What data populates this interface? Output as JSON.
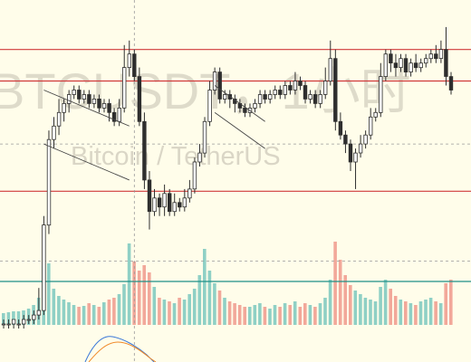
{
  "watermark": {
    "symbol_line": "BTCUSDT，1小时",
    "name_line": "Bitcoin / TetherUS"
  },
  "colors": {
    "background": "#fffdea",
    "up": "#2e2e2e",
    "down": "#2e2e2e",
    "volume_up": "#8fd0c5",
    "volume_down": "#f2a89a",
    "level_line": "#d03a3a",
    "volume_avg_line": "#1f8f86",
    "crosshair": "#9a9a9a",
    "channel": "#444444",
    "osc_a": "#3a78d8",
    "osc_b": "#f08a2a"
  },
  "chart_data": {
    "type": "candlestick",
    "title": "",
    "xlabel": "",
    "ylabel": "",
    "price_range": [
      30,
      100
    ],
    "horizontal_levels": [
      91,
      84,
      59.5
    ],
    "volume_average": 48,
    "candles": [
      [
        30,
        30,
        29,
        31
      ],
      [
        30,
        30,
        29,
        31
      ],
      [
        30,
        31,
        29,
        31
      ],
      [
        30,
        30,
        29,
        31
      ],
      [
        30,
        31,
        29,
        32
      ],
      [
        31,
        31,
        30,
        32
      ],
      [
        31,
        32,
        30,
        33
      ],
      [
        32,
        33,
        31,
        38
      ],
      [
        33,
        52,
        32,
        54
      ],
      [
        52,
        71,
        50,
        73
      ],
      [
        71,
        74,
        69,
        76
      ],
      [
        74,
        77,
        72,
        80
      ],
      [
        77,
        79,
        75,
        80
      ],
      [
        79,
        81,
        77,
        82
      ],
      [
        81,
        82,
        80,
        83
      ],
      [
        82,
        80,
        79,
        83
      ],
      [
        80,
        81,
        79,
        82
      ],
      [
        81,
        79,
        78,
        82
      ],
      [
        79,
        80,
        78,
        81
      ],
      [
        80,
        78,
        77,
        81
      ],
      [
        78,
        79,
        77,
        80
      ],
      [
        79,
        77,
        75,
        80
      ],
      [
        77,
        75,
        74,
        78
      ],
      [
        75,
        78,
        74,
        80
      ],
      [
        78,
        87,
        77,
        92
      ],
      [
        87,
        90,
        85,
        93
      ],
      [
        90,
        85,
        84,
        91
      ],
      [
        85,
        75,
        74,
        87
      ],
      [
        75,
        62,
        60,
        77
      ],
      [
        62,
        55,
        51,
        64
      ],
      [
        55,
        58,
        54,
        60
      ],
      [
        58,
        56,
        54,
        59
      ],
      [
        56,
        59,
        54,
        61
      ],
      [
        59,
        55,
        54,
        60
      ],
      [
        55,
        57,
        54,
        59
      ],
      [
        57,
        56,
        55,
        58
      ],
      [
        56,
        58,
        55,
        60
      ],
      [
        58,
        60,
        57,
        62
      ],
      [
        60,
        66,
        59,
        67
      ],
      [
        66,
        68,
        65,
        70
      ],
      [
        68,
        75,
        67,
        76
      ],
      [
        75,
        82,
        74,
        84
      ],
      [
        82,
        86,
        81,
        87
      ],
      [
        86,
        80,
        79,
        87
      ],
      [
        80,
        81,
        79,
        82
      ],
      [
        81,
        80,
        78,
        82
      ],
      [
        80,
        79,
        77,
        81
      ],
      [
        79,
        78,
        77,
        80
      ],
      [
        78,
        77,
        76,
        79
      ],
      [
        77,
        78,
        76,
        79
      ],
      [
        78,
        79,
        77,
        80
      ],
      [
        79,
        81,
        78,
        82
      ],
      [
        81,
        80,
        79,
        82
      ],
      [
        80,
        81,
        79,
        82
      ],
      [
        81,
        82,
        80,
        83
      ],
      [
        82,
        81,
        80,
        83
      ],
      [
        81,
        83,
        80,
        84
      ],
      [
        83,
        82,
        81,
        84
      ],
      [
        82,
        84,
        81,
        86
      ],
      [
        84,
        83,
        82,
        85
      ],
      [
        83,
        80,
        79,
        84
      ],
      [
        80,
        81,
        79,
        82
      ],
      [
        81,
        79,
        78,
        82
      ],
      [
        79,
        81,
        78,
        82
      ],
      [
        81,
        84,
        80,
        87
      ],
      [
        84,
        89,
        83,
        93
      ],
      [
        89,
        75,
        73,
        91
      ],
      [
        75,
        72,
        71,
        77
      ],
      [
        72,
        70,
        68,
        73
      ],
      [
        70,
        66,
        64,
        71
      ],
      [
        66,
        68,
        60,
        69
      ],
      [
        68,
        70,
        67,
        72
      ],
      [
        70,
        72,
        69,
        73
      ],
      [
        72,
        76,
        71,
        78
      ],
      [
        76,
        77,
        75,
        78
      ],
      [
        77,
        85,
        76,
        88
      ],
      [
        85,
        90,
        84,
        91
      ],
      [
        90,
        88,
        86,
        91
      ],
      [
        88,
        87,
        85,
        90
      ],
      [
        87,
        89,
        86,
        90
      ],
      [
        89,
        86,
        85,
        90
      ],
      [
        86,
        88,
        85,
        89
      ],
      [
        88,
        87,
        86,
        90
      ],
      [
        87,
        88,
        86,
        89
      ],
      [
        88,
        89,
        87,
        90
      ],
      [
        89,
        90,
        88,
        91
      ],
      [
        90,
        89,
        88,
        92
      ],
      [
        89,
        91,
        88,
        93
      ],
      [
        91,
        85,
        83,
        96
      ],
      [
        85,
        82,
        81,
        86
      ]
    ],
    "volumes": [
      13,
      14,
      15,
      15,
      16,
      18,
      22,
      30,
      65,
      68,
      40,
      32,
      28,
      25,
      22,
      20,
      21,
      24,
      22,
      20,
      25,
      28,
      30,
      34,
      45,
      90,
      70,
      60,
      66,
      58,
      42,
      30,
      28,
      26,
      24,
      30,
      28,
      34,
      40,
      55,
      84,
      60,
      46,
      38,
      30,
      26,
      24,
      22,
      20,
      20,
      22,
      24,
      20,
      18,
      22,
      20,
      24,
      22,
      26,
      20,
      24,
      22,
      20,
      24,
      30,
      50,
      92,
      72,
      55,
      44,
      38,
      34,
      30,
      28,
      26,
      42,
      50,
      40,
      32,
      28,
      26,
      24,
      22,
      26,
      28,
      30,
      26,
      24,
      46,
      50
    ]
  }
}
